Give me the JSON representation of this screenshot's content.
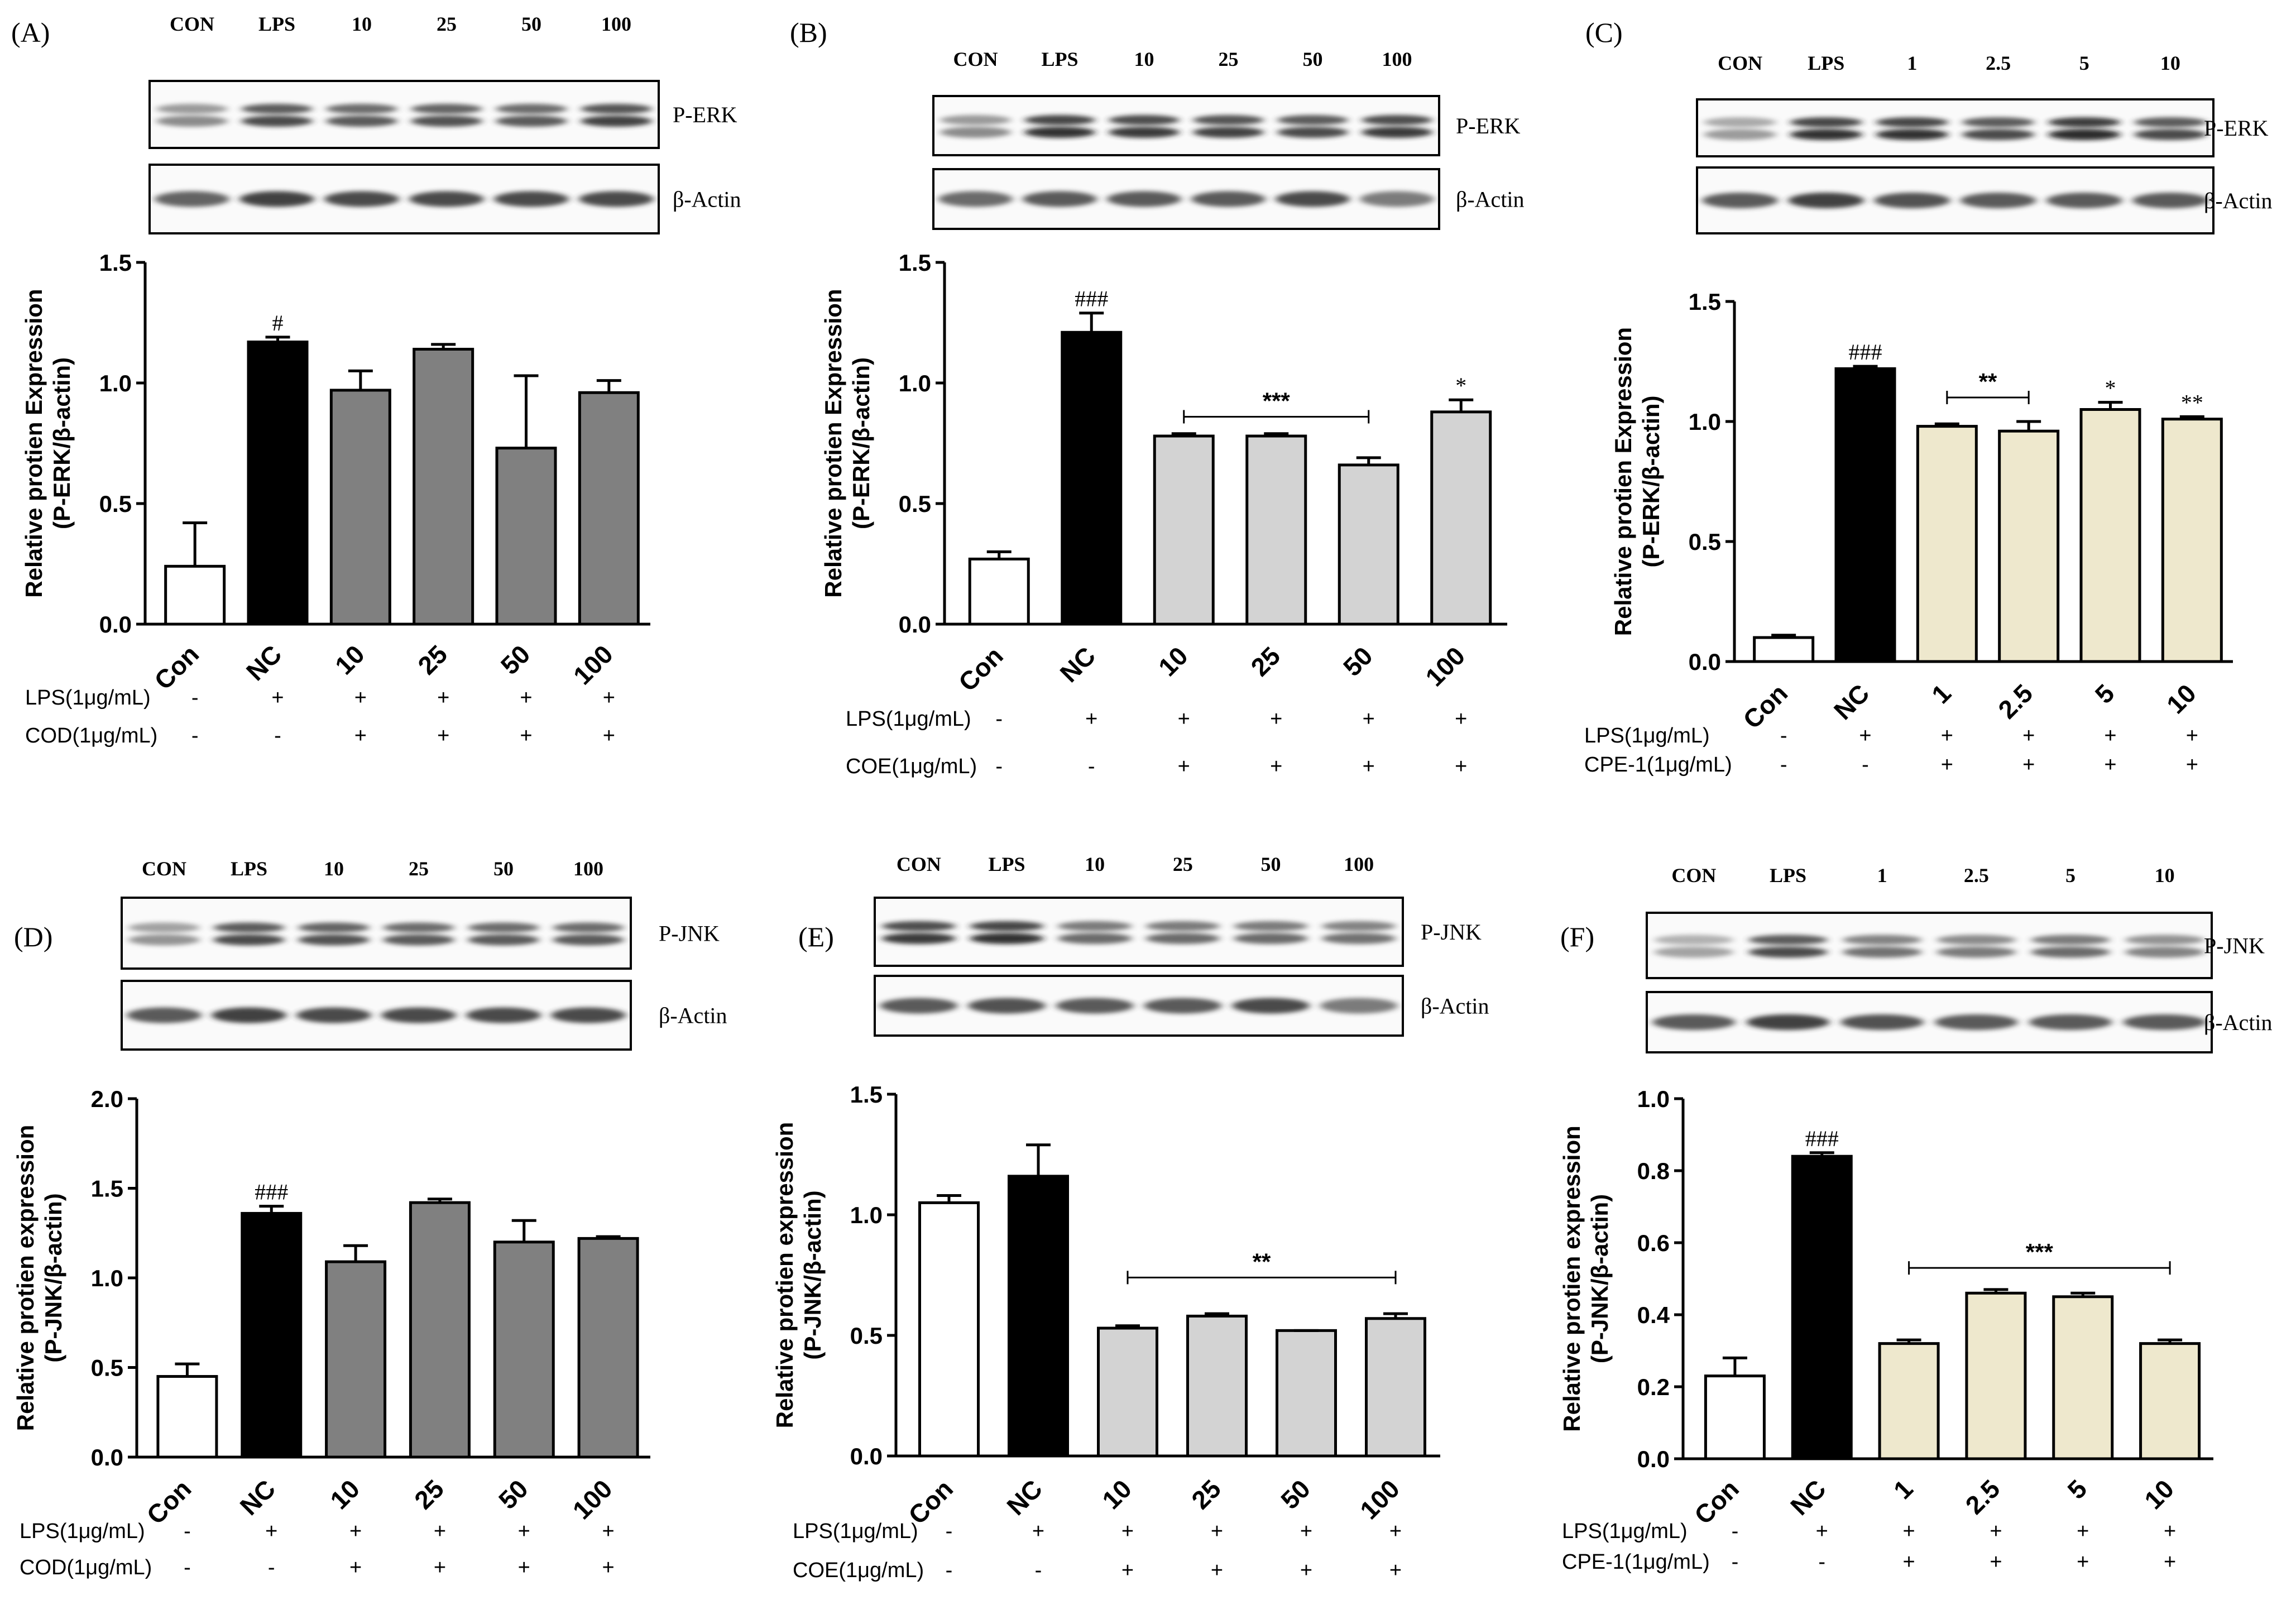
{
  "chart_data": [
    {
      "panel_label": "(A)",
      "type": "bar",
      "blot": {
        "lanes": [
          "CON",
          "LPS",
          "10",
          "25",
          "50",
          "100"
        ],
        "targets": [
          "P-ERK",
          "β-Actin"
        ],
        "top_intensity": [
          0.35,
          0.75,
          0.65,
          0.7,
          0.65,
          0.8
        ],
        "actin_intensity": [
          0.65,
          0.85,
          0.8,
          0.8,
          0.8,
          0.8
        ]
      },
      "categories": [
        "Con",
        "NC",
        "10",
        "25",
        "50",
        "100"
      ],
      "values": [
        0.24,
        1.17,
        0.97,
        1.14,
        0.73,
        0.96
      ],
      "errors": [
        0.18,
        0.02,
        0.08,
        0.02,
        0.3,
        0.05
      ],
      "bar_colors": [
        "#ffffff",
        "#000000",
        "#808080",
        "#808080",
        "#808080",
        "#808080"
      ],
      "ylabel_line1": "Relative protien Expression",
      "ylabel_line2": "(P-ERK/β-actin)",
      "ylim": [
        0,
        1.5
      ],
      "yticks": [
        "0.0",
        "0.5",
        "1.0",
        "1.5"
      ],
      "annotations": [
        {
          "bar": 1,
          "text": "#"
        }
      ],
      "treatments": [
        {
          "label": "LPS(1μg/mL)",
          "signs": [
            "-",
            "+",
            "+",
            "+",
            "+",
            "+"
          ]
        },
        {
          "label": "COD(1μg/mL)",
          "signs": [
            "-",
            "-",
            "+",
            "+",
            "+",
            "+"
          ]
        }
      ]
    },
    {
      "panel_label": "(B)",
      "type": "bar",
      "blot": {
        "lanes": [
          "CON",
          "LPS",
          "10",
          "25",
          "50",
          "100"
        ],
        "targets": [
          "P-ERK",
          "β-Actin"
        ],
        "top_intensity": [
          0.35,
          0.9,
          0.85,
          0.8,
          0.75,
          0.85
        ],
        "actin_intensity": [
          0.6,
          0.7,
          0.7,
          0.7,
          0.8,
          0.5
        ]
      },
      "categories": [
        "Con",
        "NC",
        "10",
        "25",
        "50",
        "100"
      ],
      "values": [
        0.27,
        1.21,
        0.78,
        0.78,
        0.66,
        0.88
      ],
      "errors": [
        0.03,
        0.08,
        0.01,
        0.01,
        0.03,
        0.05
      ],
      "bar_colors": [
        "#ffffff",
        "#000000",
        "#d3d3d3",
        "#d3d3d3",
        "#d3d3d3",
        "#d3d3d3"
      ],
      "ylabel_line1": "Relative protien Expression",
      "ylabel_line2": "(P-ERK/β-actin)",
      "ylim": [
        0,
        1.5
      ],
      "yticks": [
        "0.0",
        "0.5",
        "1.0",
        "1.5"
      ],
      "annotations": [
        {
          "bar": 1,
          "text": "###"
        },
        {
          "bar": 5,
          "text": "*"
        }
      ],
      "significance_bracket": {
        "from": 2,
        "to": 4,
        "text": "***",
        "level": 0.86
      },
      "treatments": [
        {
          "label": "LPS(1μg/mL)",
          "signs": [
            "-",
            "+",
            "+",
            "+",
            "+",
            "+"
          ]
        },
        {
          "label": "COE(1μg/mL)",
          "signs": [
            "-",
            "-",
            "+",
            "+",
            "+",
            "+"
          ]
        }
      ]
    },
    {
      "panel_label": "(C)",
      "type": "bar",
      "blot": {
        "lanes": [
          "CON",
          "LPS",
          "1",
          "2.5",
          "5",
          "10"
        ],
        "targets": [
          "P-ERK",
          "β-Actin"
        ],
        "top_intensity": [
          0.25,
          0.9,
          0.9,
          0.75,
          0.95,
          0.75
        ],
        "actin_intensity": [
          0.7,
          0.85,
          0.75,
          0.7,
          0.7,
          0.7
        ]
      },
      "categories": [
        "Con",
        "NC",
        "1",
        "2.5",
        "5",
        "10"
      ],
      "values": [
        0.1,
        1.22,
        0.98,
        0.96,
        1.05,
        1.01
      ],
      "errors": [
        0.01,
        0.01,
        0.01,
        0.04,
        0.03,
        0.01
      ],
      "bar_colors": [
        "#ffffff",
        "#000000",
        "#eee8cd",
        "#eee8cd",
        "#eee8cd",
        "#eee8cd"
      ],
      "ylabel_line1": "Relative protien Expression",
      "ylabel_line2": "(P-ERK/β-actin)",
      "ylim": [
        0,
        1.5
      ],
      "yticks": [
        "0.0",
        "0.5",
        "1.0",
        "1.5"
      ],
      "annotations": [
        {
          "bar": 1,
          "text": "###"
        },
        {
          "bar": 4,
          "text": "*"
        },
        {
          "bar": 5,
          "text": "**"
        }
      ],
      "significance_bracket": {
        "from": 2,
        "to": 3,
        "text": "**",
        "level": 1.1
      },
      "treatments": [
        {
          "label": "LPS(1μg/mL)",
          "signs": [
            "-",
            "+",
            "+",
            "+",
            "+",
            "+"
          ]
        },
        {
          "label": "CPE-1(1μg/mL)",
          "signs": [
            "-",
            "-",
            "+",
            "+",
            "+",
            "+"
          ]
        }
      ]
    },
    {
      "panel_label": "(D)",
      "type": "bar",
      "blot": {
        "lanes": [
          "CON",
          "LPS",
          "10",
          "25",
          "50",
          "100"
        ],
        "targets": [
          "P-JNK",
          "β-Actin"
        ],
        "top_intensity": [
          0.3,
          0.75,
          0.7,
          0.65,
          0.65,
          0.65
        ],
        "actin_intensity": [
          0.7,
          0.85,
          0.8,
          0.8,
          0.8,
          0.8
        ]
      },
      "categories": [
        "Con",
        "NC",
        "10",
        "25",
        "50",
        "100"
      ],
      "values": [
        0.45,
        1.36,
        1.09,
        1.42,
        1.2,
        1.22
      ],
      "errors": [
        0.07,
        0.04,
        0.09,
        0.02,
        0.12,
        0.01
      ],
      "bar_colors": [
        "#ffffff",
        "#000000",
        "#808080",
        "#808080",
        "#808080",
        "#808080"
      ],
      "ylabel_line1": "Relative protien expression",
      "ylabel_line2": "(P-JNK/β-actin)",
      "ylim": [
        0,
        2.0
      ],
      "yticks": [
        "0.0",
        "0.5",
        "1.0",
        "1.5",
        "2.0"
      ],
      "annotations": [
        {
          "bar": 1,
          "text": "###"
        }
      ],
      "treatments": [
        {
          "label": "LPS(1μg/mL)",
          "signs": [
            "-",
            "+",
            "+",
            "+",
            "+",
            "+"
          ]
        },
        {
          "label": "COD(1μg/mL)",
          "signs": [
            "-",
            "-",
            "+",
            "+",
            "+",
            "+"
          ]
        }
      ]
    },
    {
      "panel_label": "(E)",
      "type": "bar",
      "blot": {
        "lanes": [
          "CON",
          "LPS",
          "10",
          "25",
          "50",
          "100"
        ],
        "targets": [
          "P-JNK",
          "β-Actin"
        ],
        "top_intensity": [
          0.85,
          0.9,
          0.55,
          0.55,
          0.55,
          0.5
        ],
        "actin_intensity": [
          0.7,
          0.75,
          0.7,
          0.7,
          0.8,
          0.5
        ]
      },
      "categories": [
        "Con",
        "NC",
        "10",
        "25",
        "50",
        "100"
      ],
      "values": [
        1.05,
        1.16,
        0.53,
        0.58,
        0.52,
        0.57
      ],
      "errors": [
        0.03,
        0.13,
        0.01,
        0.01,
        0.0,
        0.02
      ],
      "bar_colors": [
        "#ffffff",
        "#000000",
        "#d3d3d3",
        "#d3d3d3",
        "#d3d3d3",
        "#d3d3d3"
      ],
      "ylabel_line1": "Relative protien expression",
      "ylabel_line2": "(P-JNK/β-actin)",
      "ylim": [
        0,
        1.5
      ],
      "yticks": [
        "0.0",
        "0.5",
        "1.0",
        "1.5"
      ],
      "annotations": [],
      "significance_bracket": {
        "from": 2,
        "to": 5,
        "text": "**",
        "level": 0.74
      },
      "treatments": [
        {
          "label": "LPS(1μg/mL)",
          "signs": [
            "-",
            "+",
            "+",
            "+",
            "+",
            "+"
          ]
        },
        {
          "label": "COE(1μg/mL)",
          "signs": [
            "-",
            "-",
            "+",
            "+",
            "+",
            "+"
          ]
        }
      ]
    },
    {
      "panel_label": "(F)",
      "type": "bar",
      "blot": {
        "lanes": [
          "CON",
          "LPS",
          "1",
          "2.5",
          "5",
          "10"
        ],
        "targets": [
          "P-JNK",
          "β-Actin"
        ],
        "top_intensity": [
          0.2,
          0.75,
          0.5,
          0.45,
          0.55,
          0.4
        ],
        "actin_intensity": [
          0.7,
          0.85,
          0.75,
          0.7,
          0.7,
          0.7
        ]
      },
      "categories": [
        "Con",
        "NC",
        "1",
        "2.5",
        "5",
        "10"
      ],
      "values": [
        0.23,
        0.84,
        0.32,
        0.46,
        0.45,
        0.32
      ],
      "errors": [
        0.05,
        0.01,
        0.01,
        0.01,
        0.01,
        0.01
      ],
      "bar_colors": [
        "#ffffff",
        "#000000",
        "#eee8cd",
        "#eee8cd",
        "#eee8cd",
        "#eee8cd"
      ],
      "ylabel_line1": "Relative protien expression",
      "ylabel_line2": "(P-JNK/β-actin)",
      "ylim": [
        0,
        1.0
      ],
      "yticks": [
        "0.0",
        "0.2",
        "0.4",
        "0.6",
        "0.8",
        "1.0"
      ],
      "annotations": [
        {
          "bar": 1,
          "text": "###"
        }
      ],
      "significance_bracket": {
        "from": 2,
        "to": 5,
        "text": "***",
        "level": 0.53
      },
      "treatments": [
        {
          "label": "LPS(1μg/mL)",
          "signs": [
            "-",
            "+",
            "+",
            "+",
            "+",
            "+"
          ]
        },
        {
          "label": "CPE-1(1μg/mL)",
          "signs": [
            "-",
            "-",
            "+",
            "+",
            "+",
            "+"
          ]
        }
      ]
    }
  ]
}
